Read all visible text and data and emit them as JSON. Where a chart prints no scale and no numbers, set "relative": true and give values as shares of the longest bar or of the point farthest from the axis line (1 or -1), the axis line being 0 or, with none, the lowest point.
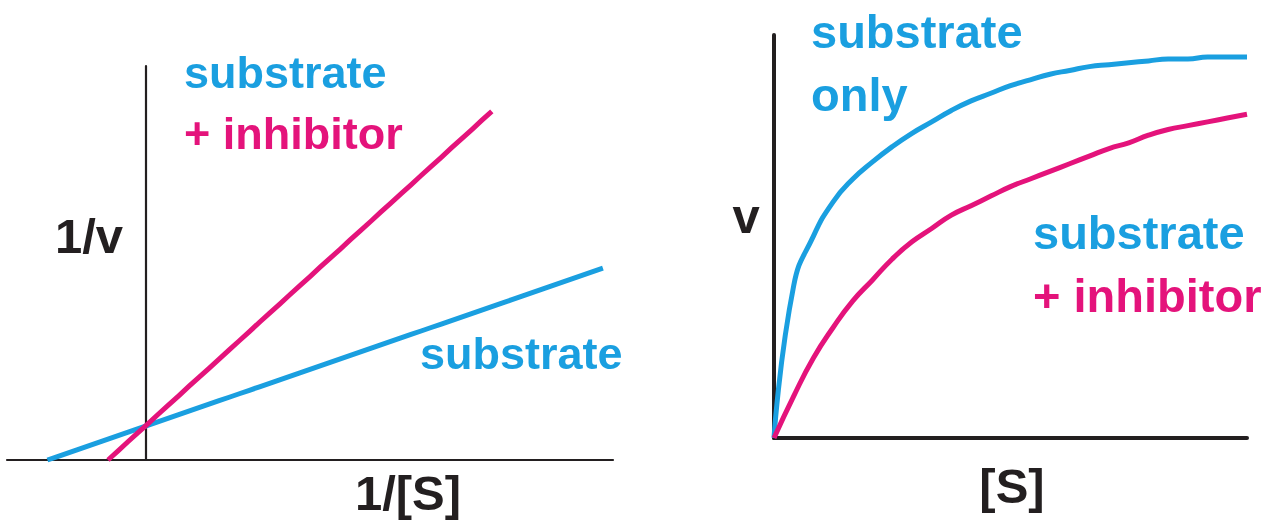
{
  "chart_data": [
    {
      "type": "line",
      "xlabel": "1/[S]",
      "ylabel": "1/v",
      "relative": true,
      "categories": [
        null,
        null,
        null,
        null,
        null,
        null,
        null,
        null,
        null,
        null,
        null,
        null,
        null,
        null,
        null,
        null,
        null,
        null,
        null,
        null,
        null,
        null,
        null,
        null,
        null,
        null,
        null,
        null,
        null,
        null,
        null,
        null,
        null,
        null,
        null,
        null,
        null,
        null,
        null,
        null,
        null,
        null,
        null,
        null,
        null,
        null,
        null,
        null,
        null,
        null,
        null,
        null,
        null,
        null,
        null,
        null,
        null,
        null,
        null,
        null,
        null
      ],
      "series": [
        {
          "name": "substrate",
          "color": "#1a9fe0",
          "values": [
            null,
            null,
            null,
            null,
            0,
            0.01,
            0.02,
            0.03,
            0.04,
            0.05,
            0.06,
            0.07,
            0.08,
            0.09,
            0.1,
            0.11,
            0.12,
            0.13,
            0.14,
            0.15,
            0.16,
            0.17,
            0.18,
            0.19,
            0.2,
            0.21,
            0.22,
            0.23,
            0.24,
            0.25,
            0.26,
            0.27,
            0.28,
            0.29,
            0.3,
            0.31,
            0.32,
            0.33,
            0.34,
            0.35,
            0.36,
            0.37,
            0.38,
            0.39,
            0.4,
            0.41,
            0.42,
            0.43,
            0.44,
            0.45,
            0.46,
            0.47,
            0.48,
            0.49,
            0.5,
            0.51,
            0.52,
            0.53,
            0.54,
            0.55,
            null
          ]
        },
        {
          "name": "substrate + inhibitor",
          "color": "#e4137b",
          "values": [
            null,
            null,
            null,
            null,
            null,
            null,
            null,
            null,
            null,
            null,
            0,
            0.026,
            0.053,
            0.079,
            0.105,
            0.132,
            0.158,
            0.184,
            0.211,
            0.237,
            0.263,
            0.289,
            0.316,
            0.342,
            0.368,
            0.395,
            0.421,
            0.447,
            0.474,
            0.5,
            0.526,
            0.553,
            0.579,
            0.605,
            0.632,
            0.658,
            0.684,
            0.711,
            0.737,
            0.763,
            0.789,
            0.816,
            0.842,
            0.868,
            0.895,
            0.921,
            0.947,
            0.974,
            1,
            null,
            null,
            null,
            null,
            null,
            null,
            null,
            null,
            null,
            null,
            null,
            null
          ]
        }
      ]
    },
    {
      "type": "line",
      "xlabel": "[S]",
      "ylabel": "v",
      "relative": true,
      "categories": [
        null,
        null,
        null,
        null,
        null,
        null,
        null,
        null,
        null,
        null,
        null,
        null,
        null,
        null,
        null,
        null,
        null,
        null,
        null,
        null,
        null,
        null,
        null,
        null,
        null
      ],
      "series": [
        {
          "name": "substrate only",
          "color": "#1a9fe0",
          "values": [
            0,
            0.4,
            0.53,
            0.62,
            0.68,
            0.725,
            0.765,
            0.8,
            0.83,
            0.86,
            0.885,
            0.905,
            0.925,
            0.94,
            0.955,
            0.965,
            0.975,
            0.98,
            0.985,
            0.99,
            0.995,
            0.995,
            1,
            1,
            1
          ]
        },
        {
          "name": "substrate + inhibitor",
          "color": "#e4137b",
          "values": [
            0,
            0.11,
            0.21,
            0.29,
            0.36,
            0.415,
            0.47,
            0.515,
            0.55,
            0.585,
            0.61,
            0.635,
            0.66,
            0.68,
            0.7,
            0.72,
            0.74,
            0.76,
            0.775,
            0.795,
            0.81,
            0.82,
            0.83,
            0.84,
            0.85
          ]
        }
      ]
    }
  ]
}
